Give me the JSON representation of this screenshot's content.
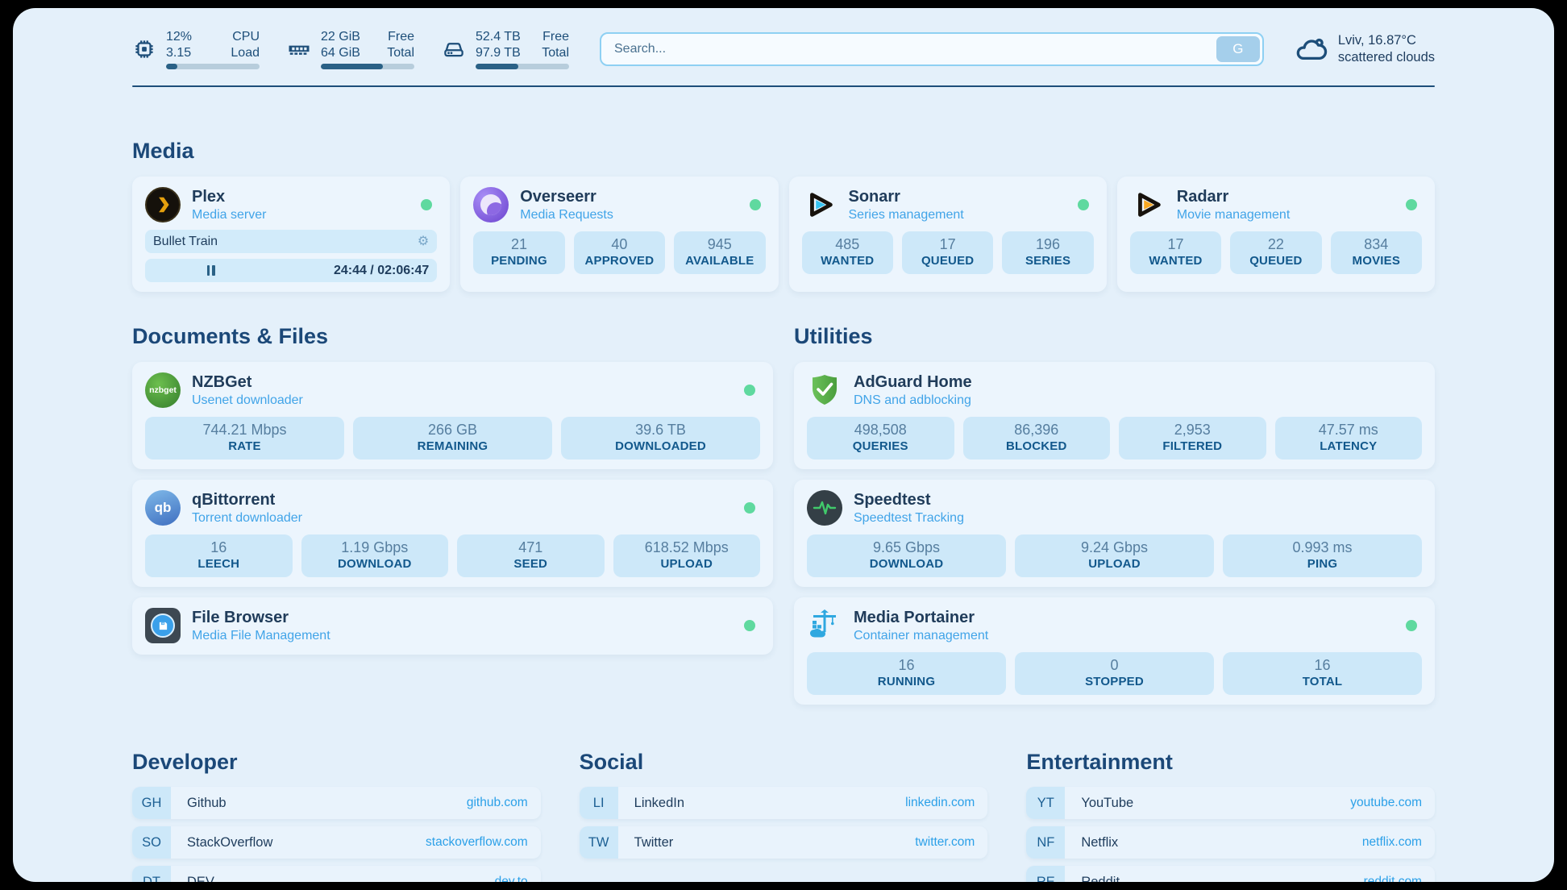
{
  "header": {
    "resources": [
      {
        "name": "cpu",
        "top_value": "12%",
        "bottom_value": "3.15",
        "top_label": "CPU",
        "bottom_label": "Load",
        "progress_pct": 12
      },
      {
        "name": "memory",
        "top_value": "22 GiB",
        "bottom_value": "64 GiB",
        "top_label": "Free",
        "bottom_label": "Total",
        "progress_pct": 66
      },
      {
        "name": "disk",
        "top_value": "52.4 TB",
        "bottom_value": "97.9 TB",
        "top_label": "Free",
        "bottom_label": "Total",
        "progress_pct": 46
      }
    ],
    "search": {
      "placeholder": "Search...",
      "button_label": "G"
    },
    "weather": {
      "location_temp": "Lviv, 16.87°C",
      "condition": "scattered clouds"
    }
  },
  "media_section": {
    "title": "Media",
    "plex": {
      "title": "Plex",
      "subtitle": "Media server",
      "now_playing": "Bullet Train",
      "progress_time": "24:44 / 02:06:47",
      "progress_pct": 19.5
    },
    "overseerr": {
      "title": "Overseerr",
      "subtitle": "Media Requests",
      "stats": [
        {
          "value": "21",
          "label": "PENDING"
        },
        {
          "value": "40",
          "label": "APPROVED"
        },
        {
          "value": "945",
          "label": "AVAILABLE"
        }
      ]
    },
    "sonarr": {
      "title": "Sonarr",
      "subtitle": "Series management",
      "stats": [
        {
          "value": "485",
          "label": "WANTED"
        },
        {
          "value": "17",
          "label": "QUEUED"
        },
        {
          "value": "196",
          "label": "SERIES"
        }
      ]
    },
    "radarr": {
      "title": "Radarr",
      "subtitle": "Movie management",
      "stats": [
        {
          "value": "17",
          "label": "WANTED"
        },
        {
          "value": "22",
          "label": "QUEUED"
        },
        {
          "value": "834",
          "label": "MOVIES"
        }
      ]
    }
  },
  "documents_section": {
    "title": "Documents & Files",
    "nzbget": {
      "title": "NZBGet",
      "subtitle": "Usenet downloader",
      "logo_text": "nzbget",
      "stats": [
        {
          "value": "744.21 Mbps",
          "label": "RATE"
        },
        {
          "value": "266 GB",
          "label": "REMAINING"
        },
        {
          "value": "39.6 TB",
          "label": "DOWNLOADED"
        }
      ]
    },
    "qbittorrent": {
      "title": "qBittorrent",
      "subtitle": "Torrent downloader",
      "logo_text": "qb",
      "stats": [
        {
          "value": "16",
          "label": "LEECH"
        },
        {
          "value": "1.19 Gbps",
          "label": "DOWNLOAD"
        },
        {
          "value": "471",
          "label": "SEED"
        },
        {
          "value": "618.52 Mbps",
          "label": "UPLOAD"
        }
      ]
    },
    "filebrowser": {
      "title": "File Browser",
      "subtitle": "Media File Management"
    }
  },
  "utilities_section": {
    "title": "Utilities",
    "adguard": {
      "title": "AdGuard Home",
      "subtitle": "DNS and adblocking",
      "stats": [
        {
          "value": "498,508",
          "label": "QUERIES"
        },
        {
          "value": "86,396",
          "label": "BLOCKED"
        },
        {
          "value": "2,953",
          "label": "FILTERED"
        },
        {
          "value": "47.57 ms",
          "label": "LATENCY"
        }
      ]
    },
    "speedtest": {
      "title": "Speedtest",
      "subtitle": "Speedtest Tracking",
      "stats": [
        {
          "value": "9.65 Gbps",
          "label": "DOWNLOAD"
        },
        {
          "value": "9.24 Gbps",
          "label": "UPLOAD"
        },
        {
          "value": "0.993 ms",
          "label": "PING"
        }
      ]
    },
    "portainer": {
      "title": "Media Portainer",
      "subtitle": "Container management",
      "stats": [
        {
          "value": "16",
          "label": "RUNNING"
        },
        {
          "value": "0",
          "label": "STOPPED"
        },
        {
          "value": "16",
          "label": "TOTAL"
        }
      ]
    }
  },
  "bookmarks": [
    {
      "title": "Developer",
      "items": [
        {
          "abbr": "GH",
          "label": "Github",
          "url": "github.com"
        },
        {
          "abbr": "SO",
          "label": "StackOverflow",
          "url": "stackoverflow.com"
        },
        {
          "abbr": "DT",
          "label": "DEV",
          "url": "dev.to"
        }
      ]
    },
    {
      "title": "Social",
      "items": [
        {
          "abbr": "LI",
          "label": "LinkedIn",
          "url": "linkedin.com"
        },
        {
          "abbr": "TW",
          "label": "Twitter",
          "url": "twitter.com"
        }
      ]
    },
    {
      "title": "Entertainment",
      "items": [
        {
          "abbr": "YT",
          "label": "YouTube",
          "url": "youtube.com"
        },
        {
          "abbr": "NF",
          "label": "Netflix",
          "url": "netflix.com"
        },
        {
          "abbr": "RE",
          "label": "Reddit",
          "url": "reddit.com"
        }
      ]
    }
  ],
  "colors": {
    "status_green": "#5fd99f",
    "accent_navy": "#1d4e79",
    "subtitle_blue": "#41a4e8"
  }
}
